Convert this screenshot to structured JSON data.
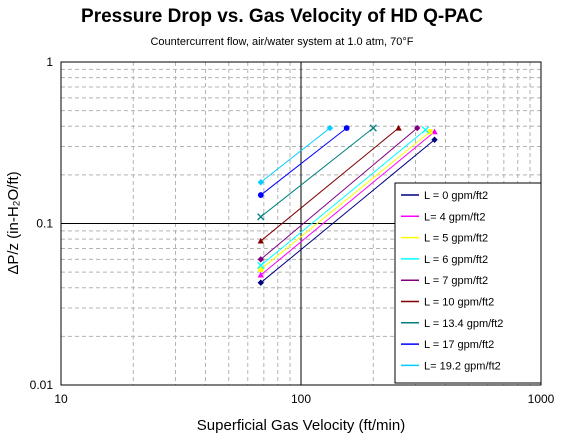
{
  "title": "Pressure Drop vs. Gas Velocity of HD Q-PAC",
  "subtitle": "Countercurrent flow, air/water system at 1.0 atm, 70°F",
  "chart_data": {
    "type": "line",
    "title": "Pressure Drop vs. Gas Velocity of HD Q-PAC",
    "subtitle": "Countercurrent flow, air/water system at 1.0 atm, 70°F",
    "xlabel": "Superficial Gas Velocity (ft/min)",
    "ylabel": "ΔP/z (in-H₂O/ft)",
    "xscale": "log",
    "yscale": "log",
    "xlim": [
      10,
      1000
    ],
    "ylim": [
      0.01,
      1
    ],
    "xticks": [
      "10",
      "100",
      "1000"
    ],
    "yticks": [
      "0.01",
      "0.1",
      "1"
    ],
    "grid": true,
    "legend_position": "right",
    "series": [
      {
        "name": "L = 0 gpm/ft2",
        "color": "#000080",
        "marker": "diamond",
        "points": [
          [
            68,
            0.043
          ],
          [
            360,
            0.33
          ]
        ]
      },
      {
        "name": "L= 4 gpm/ft2",
        "color": "#ff00ff",
        "marker": "triangle",
        "points": [
          [
            68,
            0.048
          ],
          [
            360,
            0.37
          ]
        ]
      },
      {
        "name": "L = 5 gpm/ft2",
        "color": "#ffff00",
        "marker": "square",
        "points": [
          [
            68,
            0.052
          ],
          [
            345,
            0.37
          ]
        ]
      },
      {
        "name": "L = 6 gpm/ft2",
        "color": "#00ffff",
        "marker": "x",
        "points": [
          [
            68,
            0.055
          ],
          [
            330,
            0.38
          ]
        ]
      },
      {
        "name": "L = 7 gpm/ft2",
        "color": "#800080",
        "marker": "diamond",
        "points": [
          [
            68,
            0.06
          ],
          [
            305,
            0.39
          ]
        ]
      },
      {
        "name": "L = 10 gpm/ft2",
        "color": "#800000",
        "marker": "triangle",
        "points": [
          [
            68,
            0.078
          ],
          [
            255,
            0.39
          ]
        ]
      },
      {
        "name": "L = 13.4 gpm/ft2",
        "color": "#008080",
        "marker": "x",
        "points": [
          [
            68,
            0.11
          ],
          [
            200,
            0.39
          ]
        ]
      },
      {
        "name": "L = 17 gpm/ft2",
        "color": "#0000ff",
        "marker": "circle",
        "points": [
          [
            68,
            0.15
          ],
          [
            155,
            0.39
          ]
        ]
      },
      {
        "name": "L= 19.2 gpm/ft2",
        "color": "#00ccff",
        "marker": "diamond",
        "points": [
          [
            68,
            0.18
          ],
          [
            132,
            0.39
          ]
        ]
      }
    ]
  }
}
